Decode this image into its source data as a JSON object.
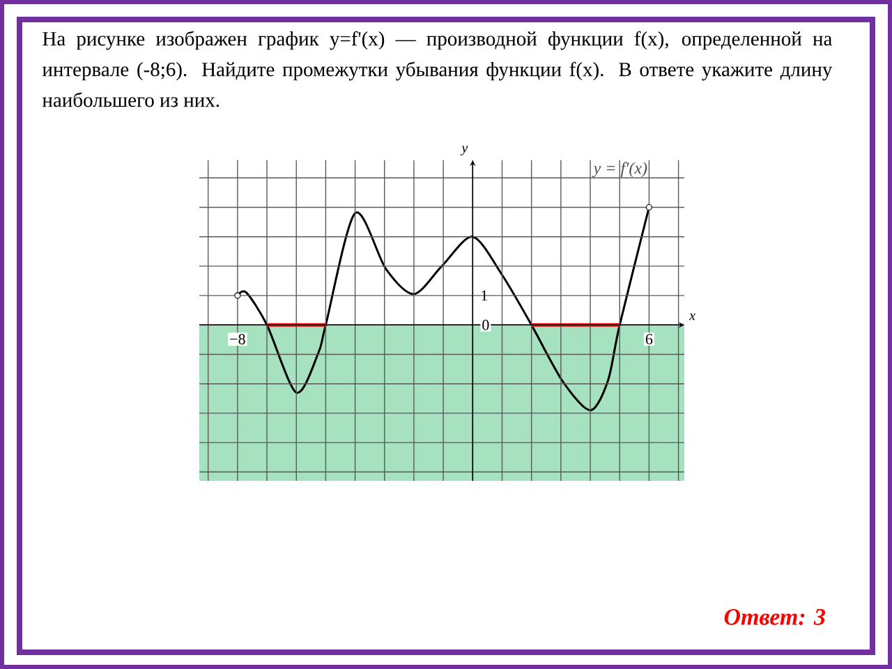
{
  "chart_data": {
    "type": "line",
    "title": "На рисунке изображен график y=f'(x) — производной функции f(x), определенной на интервале (-8;6). Найдите промежутки убывания функции f(x). В ответе укажите длину наибольшего из них.",
    "xlabel": "x",
    "ylabel": "y",
    "xlim": [
      -9.3,
      7.2
    ],
    "ylim": [
      -5.3,
      5.6
    ],
    "xticks": [
      {
        "value": -9,
        "label": null
      },
      {
        "value": -8,
        "label": "−8"
      },
      {
        "value": -7,
        "label": null
      },
      {
        "value": -6,
        "label": null
      },
      {
        "value": -5,
        "label": null
      },
      {
        "value": -4,
        "label": null
      },
      {
        "value": -3,
        "label": null
      },
      {
        "value": -2,
        "label": null
      },
      {
        "value": -1,
        "label": null
      },
      {
        "value": 0,
        "label": null
      },
      {
        "value": 1,
        "label": null
      },
      {
        "value": 2,
        "label": null
      },
      {
        "value": 3,
        "label": null
      },
      {
        "value": 4,
        "label": null
      },
      {
        "value": 5,
        "label": null
      },
      {
        "value": 6,
        "label": "6"
      },
      {
        "value": 7,
        "label": null
      }
    ],
    "yticks": [
      {
        "value": -5,
        "label": null
      },
      {
        "value": -4,
        "label": null
      },
      {
        "value": -3,
        "label": null
      },
      {
        "value": -2,
        "label": null
      },
      {
        "value": -1,
        "label": null
      },
      {
        "value": 0,
        "label": "0"
      },
      {
        "value": 1,
        "label": "1"
      },
      {
        "value": 2,
        "label": null
      },
      {
        "value": 3,
        "label": null
      },
      {
        "value": 4,
        "label": null
      },
      {
        "value": 5,
        "label": null
      }
    ],
    "grid": true,
    "line_style": "solid",
    "bands": [
      {
        "axis": "y",
        "from": -5.3,
        "to": 0,
        "color": "#a6e2c0"
      }
    ],
    "series": [
      {
        "name": "y = f′(x)",
        "color": "#000000",
        "x": [
          -8,
          -7.7,
          -7,
          -6,
          -5.25,
          -5,
          -4,
          -2.95,
          -2,
          -1.05,
          0,
          1,
          2,
          3.05,
          4,
          4.6,
          5,
          6
        ],
        "values": [
          1,
          1.1,
          0,
          -2.3,
          -0.95,
          0,
          3.8,
          1.9,
          1.05,
          2.0,
          3.0,
          1.7,
          0,
          -1.9,
          -2.9,
          -1.9,
          0,
          4.0
        ]
      },
      {
        "type": "line",
        "color": "#ff0000",
        "x": [
          -7,
          -5
        ],
        "values": [
          0,
          0
        ]
      },
      {
        "type": "line",
        "color": "#ff0000",
        "x": [
          2,
          5
        ],
        "values": [
          0,
          0
        ]
      },
      {
        "type": "scatter",
        "marker": "circle",
        "color": "#000000",
        "x": [
          -8,
          6
        ],
        "values": [
          1,
          4.0
        ]
      }
    ],
    "annotations": [
      "Ответ: 3"
    ]
  }
}
